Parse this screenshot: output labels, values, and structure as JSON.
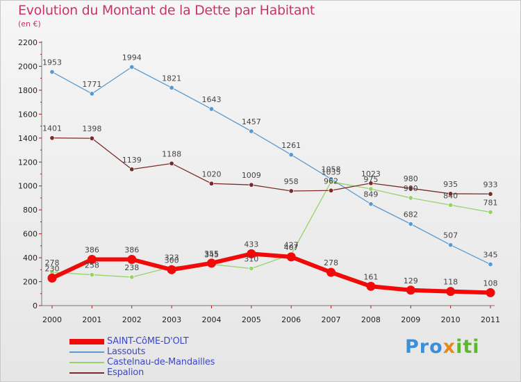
{
  "brand": {
    "p1": "Pro",
    "p2": "x",
    "p3": "iti"
  },
  "chart_data": {
    "type": "line",
    "title": "Evolution du Montant de la Dette par Habitant",
    "subtitle": "(en €)",
    "xlabel": "",
    "ylabel": "",
    "categories": [
      "2000",
      "2001",
      "2002",
      "2003",
      "2004",
      "2005",
      "2006",
      "2007",
      "2008",
      "2009",
      "2010",
      "2011"
    ],
    "ylim": [
      0,
      2200
    ],
    "yticks": [
      0,
      200,
      400,
      600,
      800,
      1000,
      1200,
      1400,
      1600,
      1800,
      2000,
      2200
    ],
    "grid": false,
    "legend_position": "bottom-left",
    "series": [
      {
        "name": "Lassouts",
        "color": "#5a9ad0",
        "values": [
          1953,
          1771,
          1994,
          1821,
          1643,
          1457,
          1261,
          1058,
          849,
          682,
          507,
          345
        ]
      },
      {
        "name": "Castelnau-de-Mandailles",
        "color": "#96d266",
        "values": [
          278,
          258,
          238,
          323,
          345,
          310,
          427,
          1035,
          975,
          900,
          840,
          781
        ]
      },
      {
        "name": "Espalion",
        "color": "#7a2a2a",
        "values": [
          1401,
          1398,
          1139,
          1188,
          1020,
          1009,
          958,
          962,
          1023,
          980,
          935,
          933
        ]
      },
      {
        "name": "SAINT-CôME-D'OLT",
        "color": "#f00a0a",
        "values": [
          230,
          386,
          386,
          300,
          355,
          433,
          407,
          278,
          161,
          129,
          118,
          108
        ]
      }
    ],
    "legend_order": [
      "SAINT-CôME-D'OLT",
      "Lassouts",
      "Castelnau-de-Mandailles",
      "Espalion"
    ]
  }
}
